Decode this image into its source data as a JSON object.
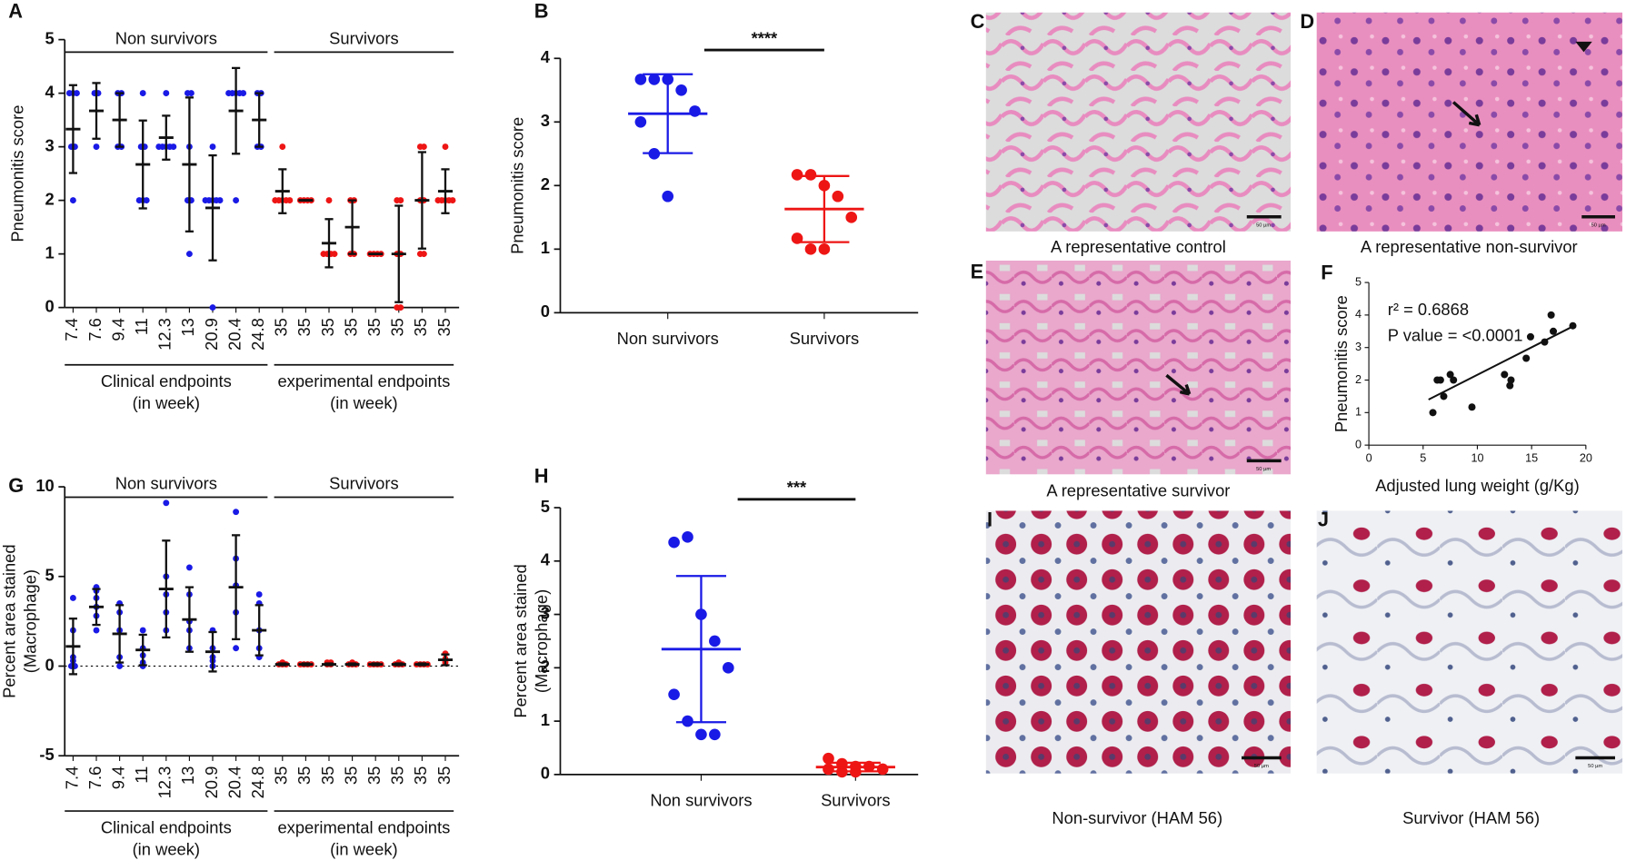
{
  "chart_data": [
    {
      "type": "dot_plot",
      "panel": "A",
      "ylabel": [
        "Pneumonitis score"
      ],
      "ylim": [
        0,
        5
      ],
      "yticks": [
        0,
        1,
        2,
        3,
        4,
        5
      ],
      "zero_line": false,
      "groups": [
        {
          "name": "Non survivors",
          "color": "#1a1ae6",
          "footer": [
            "Clinical endpoints",
            "(in week)"
          ],
          "categories": [
            "7.4",
            "7.6",
            "9.4",
            "11",
            "12.3",
            "13",
            "20.9",
            "20.4",
            "24.8"
          ],
          "points": [
            [
              2,
              3,
              3,
              4,
              4,
              4
            ],
            [
              3,
              4,
              4
            ],
            [
              3,
              3,
              4,
              4
            ],
            [
              2,
              2,
              2,
              3,
              3,
              4
            ],
            [
              3,
              3,
              3,
              3,
              3,
              4
            ],
            [
              1,
              2,
              2,
              3,
              4,
              4
            ],
            [
              0,
              2,
              2,
              2,
              2,
              2,
              3
            ],
            [
              2,
              4,
              4,
              4,
              4,
              4
            ],
            [
              3,
              3,
              4,
              4
            ]
          ],
          "means": [
            3.33,
            3.67,
            3.5,
            2.67,
            3.17,
            2.67,
            1.86,
            3.67,
            3.5
          ],
          "sds": [
            0.82,
            0.52,
            0.5,
            0.82,
            0.41,
            1.25,
            0.98,
            0.8,
            0.5
          ]
        },
        {
          "name": "Survivors",
          "color": "#ee1515",
          "footer": [
            "experimental endpoints",
            "(in week)"
          ],
          "categories": [
            "35",
            "35",
            "35",
            "35",
            "35",
            "35",
            "35",
            "35"
          ],
          "points": [
            [
              2,
              2,
              2,
              2,
              2,
              3
            ],
            [
              2,
              2,
              2,
              2
            ],
            [
              1,
              1,
              1,
              1,
              2
            ],
            [
              1,
              1,
              2,
              2
            ],
            [
              1,
              1,
              1,
              1
            ],
            [
              0,
              0,
              1,
              1,
              2,
              2
            ],
            [
              1,
              1,
              2,
              2,
              3,
              3
            ],
            [
              2,
              2,
              2,
              2,
              2,
              3
            ]
          ],
          "means": [
            2.17,
            2,
            1.2,
            1.5,
            1,
            1,
            2,
            2.17
          ],
          "sds": [
            0.41,
            0,
            0.45,
            0.5,
            0,
            0.9,
            0.9,
            0.41
          ]
        }
      ]
    },
    {
      "type": "column_scatter",
      "panel": "B",
      "ylabel": [
        "Pneumonitis score"
      ],
      "ylim": [
        0,
        4
      ],
      "yticks": [
        0,
        1,
        2,
        3,
        4
      ],
      "annotation": "****",
      "categories": [
        "Non survivors",
        "Survivors"
      ],
      "colors": [
        "#1a1ae6",
        "#ee1515"
      ],
      "points": [
        [
          3.67,
          3.67,
          3.67,
          3.5,
          3.17,
          3.0,
          2.5,
          1.83
        ],
        [
          2.17,
          2.17,
          2.0,
          1.83,
          1.5,
          1.17,
          1.0,
          1.0
        ]
      ],
      "means": [
        3.13,
        1.63
      ],
      "sds": [
        0.62,
        0.52
      ]
    },
    {
      "type": "scatter",
      "panel": "F",
      "ylabel": "Pneumonitis score",
      "xlabel": "Adjusted lung weight (g/Kg)",
      "annotations": [
        "r² = 0.6868",
        "P value = <0.0001"
      ],
      "color": "#111111",
      "xlim": [
        0,
        20
      ],
      "xticks": [
        0,
        5,
        10,
        15,
        20
      ],
      "ylim": [
        0,
        5
      ],
      "yticks": [
        0,
        1,
        2,
        3,
        4,
        5
      ],
      "x": [
        5.9,
        6.3,
        6.6,
        6.9,
        7.5,
        7.8,
        9.5,
        12.5,
        13.0,
        13.1,
        14.5,
        14.9,
        16.2,
        16.8,
        17.0,
        18.8
      ],
      "values": [
        1.0,
        2.0,
        2.0,
        1.5,
        2.17,
        2.0,
        1.17,
        2.17,
        1.83,
        2.0,
        2.67,
        3.33,
        3.17,
        4.0,
        3.5,
        3.67
      ],
      "trendline": {
        "x": [
          5.5,
          18.8
        ],
        "values": [
          1.4,
          3.65
        ]
      }
    },
    {
      "type": "dot_plot",
      "panel": "G",
      "ylabel": [
        "Percent area stained",
        "(Macrophage)"
      ],
      "ylim": [
        -5,
        10
      ],
      "yticks": [
        -5,
        0,
        5,
        10
      ],
      "zero_line": true,
      "groups": [
        {
          "name": "Non survivors",
          "color": "#1a1ae6",
          "footer": [
            "Clinical endpoints",
            "(in week)"
          ],
          "categories": [
            "7.4",
            "7.6",
            "9.4",
            "11",
            "12.3",
            "13",
            "20.9",
            "20.4",
            "24.8"
          ],
          "points": [
            [
              0,
              0,
              0.3,
              0.5,
              2,
              3.8
            ],
            [
              2,
              2.8,
              3.3,
              3.8,
              4.2,
              4.4
            ],
            [
              0,
              0.5,
              2,
              3,
              3.5
            ],
            [
              0,
              0.2,
              0.6,
              1,
              2
            ],
            [
              2,
              3,
              4,
              5,
              9.1
            ],
            [
              1,
              2,
              2.5,
              4,
              5.5
            ],
            [
              0,
              0.3,
              0.5,
              1,
              2
            ],
            [
              1,
              3,
              4.5,
              6,
              8.6
            ],
            [
              0.5,
              1,
              2,
              3.5,
              4
            ]
          ],
          "means": [
            1.1,
            3.3,
            1.8,
            0.9,
            4.3,
            2.6,
            0.8,
            4.4,
            2.0
          ],
          "sds": [
            1.55,
            1.0,
            1.6,
            0.85,
            2.7,
            1.8,
            1.1,
            2.9,
            1.4
          ]
        },
        {
          "name": "Survivors",
          "color": "#ee1515",
          "footer": [
            "experimental endpoints",
            "(in week)"
          ],
          "categories": [
            "35",
            "35",
            "35",
            "35",
            "35",
            "35",
            "35",
            "35"
          ],
          "points": [
            [
              0.1,
              0.1,
              0.1,
              0.2
            ],
            [
              0.1,
              0.1,
              0.1,
              0.1
            ],
            [
              0.1,
              0.1,
              0.2,
              0.2
            ],
            [
              0.1,
              0.1,
              0.1,
              0.2
            ],
            [
              0.1,
              0.1,
              0.1,
              0.1
            ],
            [
              0.1,
              0.1,
              0.1,
              0.2
            ],
            [
              0.1,
              0.1,
              0.1,
              0.1
            ],
            [
              0.2,
              0.3,
              0.4,
              0.7
            ]
          ],
          "means": [
            0.1,
            0.1,
            0.1,
            0.1,
            0.1,
            0.1,
            0.1,
            0.35
          ],
          "sds": [
            0.05,
            0.05,
            0.05,
            0.05,
            0.05,
            0.05,
            0.05,
            0.3
          ]
        }
      ]
    },
    {
      "type": "column_scatter",
      "panel": "H",
      "ylabel": [
        "Percent area stained",
        "(Macrophage)"
      ],
      "ylim": [
        0,
        5
      ],
      "yticks": [
        0,
        1,
        2,
        3,
        4,
        5
      ],
      "annotation": "***",
      "categories": [
        "Non survivors",
        "Survivors"
      ],
      "colors": [
        "#1a1ae6",
        "#ee1515"
      ],
      "points": [
        [
          4.35,
          4.45,
          3.0,
          2.5,
          2.0,
          1.5,
          1.0,
          0.75,
          0.75
        ],
        [
          0.3,
          0.2,
          0.15,
          0.15,
          0.1,
          0.1,
          0.05,
          0.05
        ]
      ],
      "means": [
        2.35,
        0.14
      ],
      "sds": [
        1.37,
        0.08
      ]
    }
  ],
  "images": [
    {
      "letter": "C",
      "caption": "A representative control",
      "scale": "50 µm"
    },
    {
      "letter": "D",
      "caption": "A representative non-survivor",
      "scale": "50 µm"
    },
    {
      "letter": "E",
      "caption": "A representative survivor",
      "scale": "50 µm"
    },
    {
      "letter": "I",
      "caption": "Non-survivor (HAM 56)",
      "scale": "50 µm"
    },
    {
      "letter": "J",
      "caption": "Survivor (HAM 56)",
      "scale": "50 µm"
    }
  ]
}
